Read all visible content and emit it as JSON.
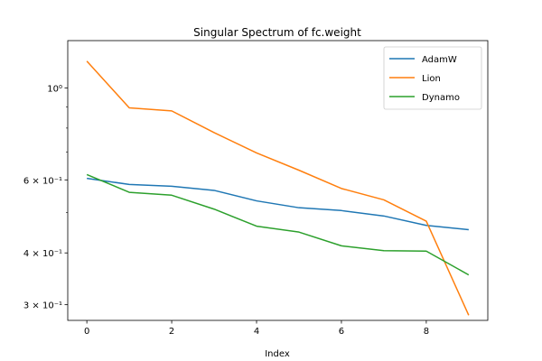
{
  "chart_data": {
    "type": "line",
    "title": "Singular Spectrum of fc.weight",
    "xlabel": "Index",
    "ylabel": "",
    "yscale": "log",
    "xlim": [
      -0.45,
      9.45
    ],
    "ylim": [
      0.275,
      1.3
    ],
    "xticks": [
      0,
      2,
      4,
      6,
      8
    ],
    "yticks_major": [
      {
        "value": 0.3,
        "label": "3 × 10⁻¹"
      },
      {
        "value": 0.4,
        "label": "4 × 10⁻¹"
      },
      {
        "value": 0.6,
        "label": "6 × 10⁻¹"
      },
      {
        "value": 1.0,
        "label": "10⁰"
      }
    ],
    "yticks_minor": [
      0.5,
      0.7,
      0.8,
      0.9
    ],
    "legend_position": "top-right",
    "x": [
      0,
      1,
      2,
      3,
      4,
      5,
      6,
      7,
      8,
      9
    ],
    "series": [
      {
        "name": "AdamW",
        "color": "#1f77b4",
        "values": [
          0.605,
          0.585,
          0.579,
          0.566,
          0.534,
          0.514,
          0.506,
          0.491,
          0.466,
          0.455
        ]
      },
      {
        "name": "Lion",
        "color": "#ff7f0e",
        "values": [
          1.16,
          0.895,
          0.88,
          0.78,
          0.697,
          0.633,
          0.572,
          0.537,
          0.477,
          0.283
        ]
      },
      {
        "name": "Dynamo",
        "color": "#2ca02c",
        "values": [
          0.618,
          0.56,
          0.551,
          0.51,
          0.464,
          0.449,
          0.416,
          0.405,
          0.404,
          0.354
        ]
      }
    ]
  }
}
